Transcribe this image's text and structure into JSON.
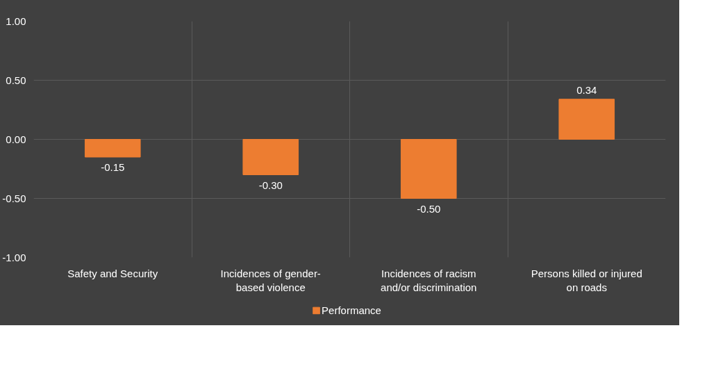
{
  "chart_data": {
    "type": "bar",
    "categories": [
      "Safety and Security",
      "Incidences of gender-\nbased violence",
      "Incidences of racism\nand/or discrimination",
      "Persons killed or injured\non roads"
    ],
    "series": [
      {
        "name": "Performance",
        "color": "#ed7d31",
        "values": [
          -0.15,
          -0.3,
          -0.5,
          0.34
        ],
        "value_labels": [
          "-0.15",
          "-0.30",
          "-0.50",
          "0.34"
        ]
      }
    ],
    "ylim": [
      -1,
      1
    ],
    "yticks": [
      {
        "value": -1,
        "label": "-1.00"
      },
      {
        "value": -0.5,
        "label": "-0.50"
      },
      {
        "value": 0,
        "label": "0.00"
      },
      {
        "value": 0.5,
        "label": "0.50"
      },
      {
        "value": 1,
        "label": "1.00"
      }
    ],
    "grid": true,
    "legend": "bottom"
  }
}
